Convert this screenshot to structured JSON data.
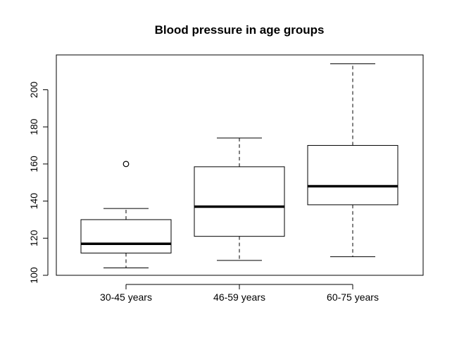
{
  "chart_data": {
    "type": "boxplot",
    "title": "Blood pressure in age groups",
    "xlabel": "",
    "ylabel": "",
    "ylim": [
      100,
      218
    ],
    "yticks": [
      100,
      120,
      140,
      160,
      180,
      200
    ],
    "categories": [
      "30-45 years",
      "46-59 years",
      "60-75 years"
    ],
    "boxes": [
      {
        "whisker_low": 104,
        "q1": 112,
        "median": 117,
        "q3": 130,
        "whisker_high": 136,
        "outliers": [
          160
        ]
      },
      {
        "whisker_low": 108,
        "q1": 121,
        "median": 137,
        "q3": 158.5,
        "whisker_high": 174,
        "outliers": []
      },
      {
        "whisker_low": 110,
        "q1": 138,
        "median": 148,
        "q3": 170,
        "whisker_high": 214,
        "outliers": []
      }
    ],
    "grid": false,
    "legend": "none"
  }
}
